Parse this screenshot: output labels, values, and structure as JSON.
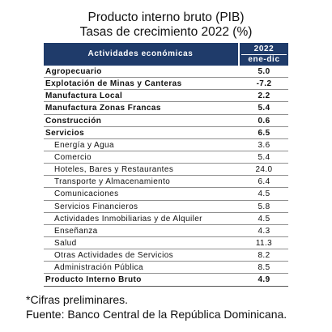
{
  "title": "Producto interno bruto (PIB)",
  "subtitle": "Tasas de crecimiento 2022 (%)",
  "table": {
    "header_activity": "Actividades económicas",
    "header_year": "2022",
    "header_period": "ene-dic",
    "header_color": "#1f3b6a",
    "rows": [
      {
        "label": "Agropecuario",
        "value": "5.0"
      },
      {
        "label": "Explotación de Minas y Canteras",
        "value": "-7.2"
      },
      {
        "label": "Manufactura Local",
        "value": "2.2"
      },
      {
        "label": "Manufactura Zonas Francas",
        "value": "5.4"
      },
      {
        "label": "Construcción",
        "value": "0.6"
      },
      {
        "label": "Servicios",
        "value": "6.5"
      },
      {
        "label": "Energía y Agua",
        "value": "3.6"
      },
      {
        "label": "Comercio",
        "value": "5.4"
      },
      {
        "label": "Hoteles, Bares y Restaurantes",
        "value": "24.0"
      },
      {
        "label": "Transporte y Almacenamiento",
        "value": "6.4"
      },
      {
        "label": "Comunicaciones",
        "value": "4.5"
      },
      {
        "label": "Servicios Financieros",
        "value": "5.8"
      },
      {
        "label": "Actividades Inmobiliarias y de Alquiler",
        "value": "4.5"
      },
      {
        "label": "Enseñanza",
        "value": "4.3"
      },
      {
        "label": "Salud",
        "value": "11.3"
      },
      {
        "label": "Otras Actividades de Servicios",
        "value": "8.2"
      },
      {
        "label": "Administración Pública",
        "value": "8.5"
      }
    ],
    "total": {
      "label": "Producto Interno Bruto",
      "value": "4.9"
    }
  },
  "footnotes": {
    "note": "*Cifras preliminares.",
    "source": "Fuente: Banco Central de la República Dominicana."
  }
}
